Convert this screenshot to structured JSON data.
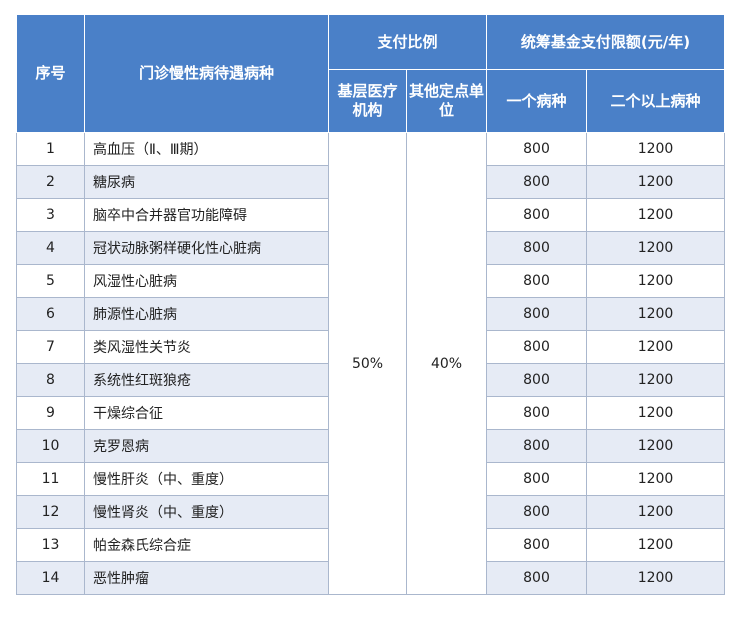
{
  "headers": {
    "seq": "序号",
    "disease": "门诊慢性病待遇病种",
    "payment_ratio": "支付比例",
    "basic_institution": "基层医疗机构",
    "other_units": "其他定点单位",
    "fund_limit": "统筹基金支付限额(元/年)",
    "one_disease": "一个病种",
    "two_plus": "二个以上病种"
  },
  "ratios": {
    "basic": "50%",
    "other": "40%"
  },
  "rows": [
    {
      "seq": "1",
      "name": "高血压（Ⅱ、Ⅲ期）",
      "one": "800",
      "two": "1200"
    },
    {
      "seq": "2",
      "name": "糖尿病",
      "one": "800",
      "two": "1200"
    },
    {
      "seq": "3",
      "name": "脑卒中合并器官功能障碍",
      "one": "800",
      "two": "1200"
    },
    {
      "seq": "4",
      "name": "冠状动脉粥样硬化性心脏病",
      "one": "800",
      "two": "1200"
    },
    {
      "seq": "5",
      "name": "风湿性心脏病",
      "one": "800",
      "two": "1200"
    },
    {
      "seq": "6",
      "name": "肺源性心脏病",
      "one": "800",
      "two": "1200"
    },
    {
      "seq": "7",
      "name": "类风湿性关节炎",
      "one": "800",
      "two": "1200"
    },
    {
      "seq": "8",
      "name": "系统性红斑狼疮",
      "one": "800",
      "two": "1200"
    },
    {
      "seq": "9",
      "name": "干燥综合征",
      "one": "800",
      "two": "1200"
    },
    {
      "seq": "10",
      "name": "克罗恩病",
      "one": "800",
      "two": "1200"
    },
    {
      "seq": "11",
      "name": "慢性肝炎（中、重度）",
      "one": "800",
      "two": "1200"
    },
    {
      "seq": "12",
      "name": "慢性肾炎（中、重度）",
      "one": "800",
      "two": "1200"
    },
    {
      "seq": "13",
      "name": "帕金森氏综合症",
      "one": "800",
      "two": "1200"
    },
    {
      "seq": "14",
      "name": "恶性肿瘤",
      "one": "800",
      "two": "1200"
    }
  ]
}
